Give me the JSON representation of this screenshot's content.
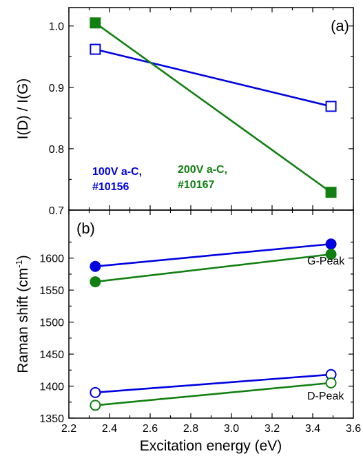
{
  "figure": {
    "xlabel": "Excitation energy (eV)",
    "x_ticks": [
      "2.2",
      "2.4",
      "2.6",
      "2.8",
      "3.0",
      "3.2",
      "3.4",
      "3.6"
    ]
  },
  "colors": {
    "blue": "#0000e0",
    "green": "#118011",
    "axis": "#000000"
  },
  "chart_data": [
    {
      "type": "line",
      "panel_label": "(a)",
      "ylabel": "I(D) / I(G)",
      "xlim": [
        2.2,
        3.6
      ],
      "ylim": [
        0.7,
        1.03
      ],
      "y_ticks": [
        "0.7",
        "0.8",
        "0.9",
        "1.0"
      ],
      "annotations": [
        {
          "line1": "100V a-C,",
          "line2": "#10156",
          "color": "#0000e0"
        },
        {
          "line1": "200V a-C,",
          "line2": "#10167",
          "color": "#118011"
        }
      ],
      "series": [
        {
          "color": "#0000e0",
          "marker": "square",
          "filled": false,
          "x": [
            2.33,
            3.49
          ],
          "y": [
            0.962,
            0.869
          ]
        },
        {
          "color": "#118011",
          "marker": "square",
          "filled": true,
          "x": [
            2.33,
            3.49
          ],
          "y": [
            1.005,
            0.729
          ]
        }
      ]
    },
    {
      "type": "line",
      "panel_label": "(b)",
      "ylabel": "Raman shift (cm",
      "ylabel_sup": "-1",
      "ylabel_end": ")",
      "xlim": [
        2.2,
        3.6
      ],
      "ylim": [
        1350,
        1675
      ],
      "y_ticks": [
        "1350",
        "1400",
        "1450",
        "1500",
        "1550",
        "1600"
      ],
      "annotations": [
        {
          "text": "G-Peak",
          "color": "#000000"
        },
        {
          "text": "D-Peak",
          "color": "#000000"
        }
      ],
      "series": [
        {
          "color": "#0000e0",
          "marker": "circle",
          "filled": true,
          "x": [
            2.33,
            3.49
          ],
          "y": [
            1587,
            1622
          ]
        },
        {
          "color": "#118011",
          "marker": "circle",
          "filled": true,
          "x": [
            2.33,
            3.49
          ],
          "y": [
            1563,
            1606
          ]
        },
        {
          "color": "#0000e0",
          "marker": "circle",
          "filled": false,
          "x": [
            2.33,
            3.49
          ],
          "y": [
            1390,
            1418
          ]
        },
        {
          "color": "#118011",
          "marker": "circle",
          "filled": false,
          "x": [
            2.33,
            3.49
          ],
          "y": [
            1370,
            1405
          ]
        }
      ]
    }
  ]
}
